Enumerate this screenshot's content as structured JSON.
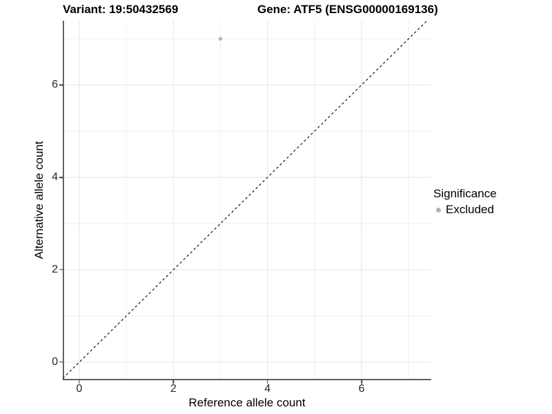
{
  "titles": {
    "variant": "Variant: 19:50432569",
    "gene": "Gene: ATF5 (ENSG00000169136)"
  },
  "chart_data": {
    "type": "scatter",
    "title": "Variant: 19:50432569   Gene: ATF5 (ENSG00000169136)",
    "xlabel": "Reference allele count",
    "ylabel": "Alternative allele count",
    "xlim": [
      -0.35,
      7.48
    ],
    "ylim": [
      -0.39,
      7.39
    ],
    "x_major_ticks": [
      0,
      2,
      4,
      6
    ],
    "y_major_ticks": [
      0,
      2,
      4,
      6
    ],
    "x_minor_gridlines": [
      1,
      3,
      5,
      7
    ],
    "y_minor_gridlines": [
      1,
      3,
      5,
      7
    ],
    "grid": true,
    "points": [
      {
        "x": 3,
        "y": 7,
        "significance": "Excluded"
      }
    ],
    "reference_line": {
      "type": "identity",
      "slope": 1,
      "intercept": 0,
      "style": "dashed"
    },
    "legend": {
      "title": "Significance",
      "position": "right",
      "items": [
        {
          "label": "Excluded",
          "marker": "circle",
          "color": "#b3b3b3"
        }
      ]
    },
    "colors": {
      "point": "#b8b8b8",
      "grid_major": "#e3e3e3",
      "grid_minor": "#efefef",
      "axis_line": "#3c3c3c",
      "reference_line": "#000000",
      "tick_label": "#262626",
      "background": "#ffffff"
    }
  }
}
